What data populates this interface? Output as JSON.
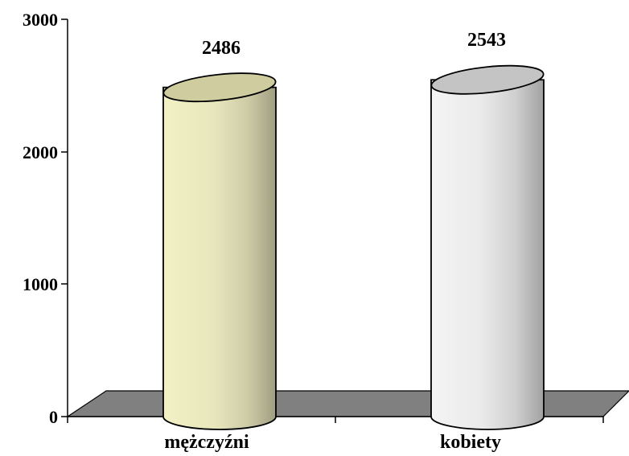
{
  "chart_data": {
    "type": "bar",
    "style": "3d-cylinder",
    "categories": [
      "mężczyźni",
      "kobiety"
    ],
    "values": [
      2486,
      2543
    ],
    "value_labels": [
      "2486",
      "2543"
    ],
    "ylim": [
      0,
      3000
    ],
    "yticks": [
      0,
      1000,
      2000,
      3000
    ],
    "ytick_labels": [
      "0",
      "1000",
      "2000",
      "3000"
    ],
    "title": "",
    "xlabel": "",
    "ylabel": "",
    "grid": false,
    "legend": "none",
    "colors": {
      "series_1_side": "#f2f0c4",
      "series_1_top": "#cfcc9f",
      "series_2_side": "#f4f4f4",
      "series_2_top": "#c4c4c4",
      "floor": "#808080",
      "axis": "#000000"
    }
  }
}
